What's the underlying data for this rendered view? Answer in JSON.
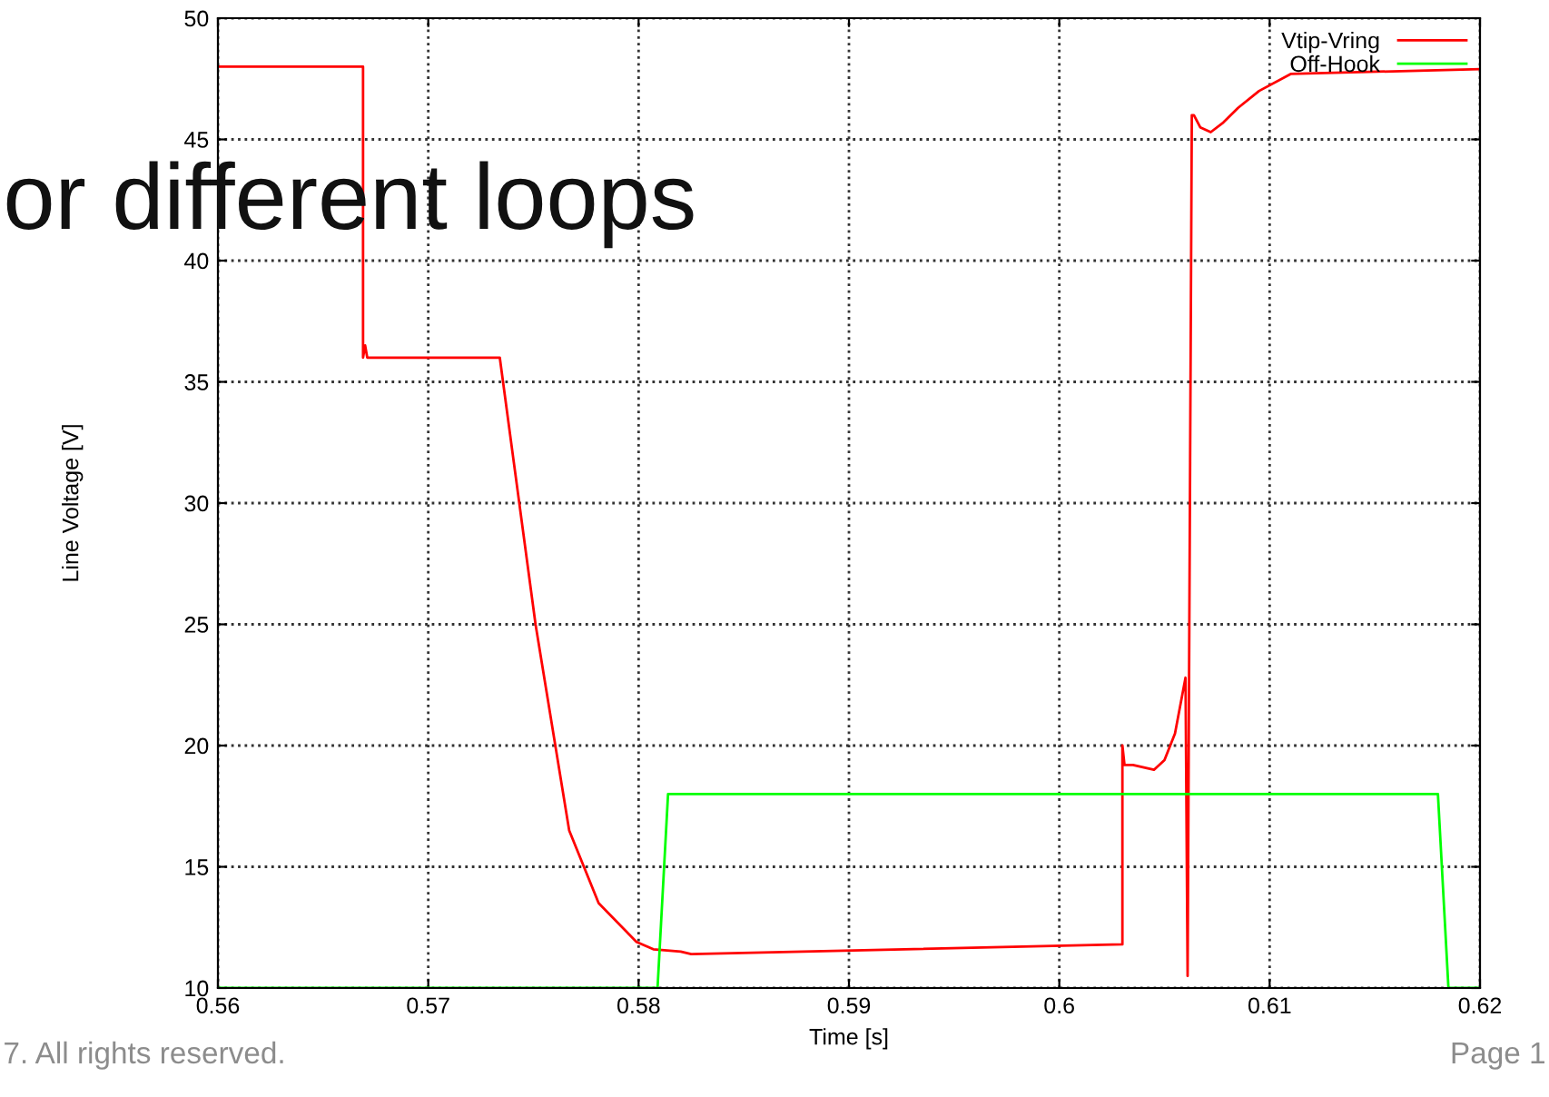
{
  "chart_data": {
    "type": "line",
    "title": "or different loops",
    "xlabel": "Time [s]",
    "ylabel": "Line Voltage [V]",
    "xlim": [
      0.56,
      0.62
    ],
    "xticks": [
      0.56,
      0.57,
      0.58,
      0.59,
      0.6,
      0.61,
      0.62
    ],
    "ylim": [
      10,
      50
    ],
    "yticks": [
      10,
      15,
      20,
      25,
      30,
      35,
      40,
      45,
      50
    ],
    "grid": true,
    "legend": "top right",
    "annotations": [
      "7. All rights reserved.",
      "Page 1"
    ],
    "series": [
      {
        "name": "Vtip-Vring",
        "color": "#ff0000",
        "x": [
          0.56,
          0.5669,
          0.5669,
          0.567,
          0.5671,
          0.5732,
          0.5734,
          0.5751,
          0.5767,
          0.5781,
          0.5799,
          0.5807,
          0.582,
          0.5825,
          0.603,
          0.603,
          0.6031,
          0.6035,
          0.6045,
          0.605,
          0.6055,
          0.606,
          0.6061,
          0.6063,
          0.6064,
          0.6067,
          0.6072,
          0.6078,
          0.6085,
          0.6095,
          0.611,
          0.62
        ],
        "values": [
          48,
          48,
          36,
          36.5,
          36,
          36,
          36,
          25,
          16.5,
          13.5,
          11.9,
          11.6,
          11.5,
          11.4,
          11.8,
          20,
          19.2,
          19.2,
          19.0,
          19.4,
          20.5,
          22.8,
          10.5,
          46,
          46,
          45.5,
          45.3,
          45.7,
          46.3,
          47,
          47.7,
          47.9
        ]
      },
      {
        "name": "Off-Hook",
        "color": "#00ff00",
        "x": [
          0.56,
          0.5809,
          0.5814,
          0.618,
          0.6185,
          0.62
        ],
        "values": [
          10,
          10,
          18,
          18,
          10,
          10
        ]
      }
    ]
  }
}
